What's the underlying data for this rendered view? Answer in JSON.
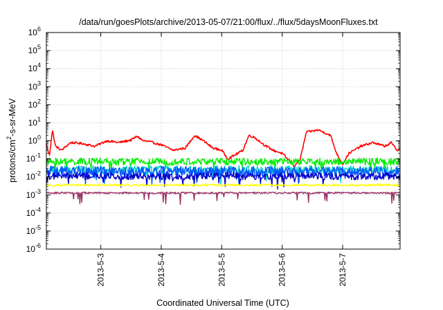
{
  "chart_data": {
    "type": "line",
    "title": "/data/run/goesPlots/archive/2013-05-07/21:00/flux/../flux/5daysMoonFluxes.txt",
    "xlabel": "Coordinated Universal Time (UTC)",
    "ylabel_parts": {
      "pre": "protons/cm",
      "sup": "2",
      "post": "-s-sr-MeV"
    },
    "y_scale": "log",
    "ylim": [
      1e-06,
      1000000.0
    ],
    "y_ticks": [
      {
        "base": "10",
        "exp": "-6",
        "v": -6
      },
      {
        "base": "10",
        "exp": "-5",
        "v": -5
      },
      {
        "base": "10",
        "exp": "-4",
        "v": -4
      },
      {
        "base": "10",
        "exp": "-3",
        "v": -3
      },
      {
        "base": "10",
        "exp": "-2",
        "v": -2
      },
      {
        "base": "10",
        "exp": "-1",
        "v": -1
      },
      {
        "base": "10",
        "exp": "0",
        "v": 0
      },
      {
        "base": "10",
        "exp": "1",
        "v": 1
      },
      {
        "base": "10",
        "exp": "2",
        "v": 2
      },
      {
        "base": "10",
        "exp": "3",
        "v": 3
      },
      {
        "base": "10",
        "exp": "4",
        "v": 4
      },
      {
        "base": "10",
        "exp": "5",
        "v": 5
      },
      {
        "base": "10",
        "exp": "6",
        "v": 6
      }
    ],
    "x_range_days": [
      2.1,
      7.95
    ],
    "x_ticks": [
      {
        "label": "2013-5-3",
        "day": 3
      },
      {
        "label": "2013-5-4",
        "day": 4
      },
      {
        "label": "2013-5-5",
        "day": 5
      },
      {
        "label": "2013-5-6",
        "day": 6
      },
      {
        "label": "2013-5-7",
        "day": 7
      }
    ],
    "grid": true,
    "series": [
      {
        "color": "#ff0000",
        "points": [
          [
            2.1,
            0.6
          ],
          [
            2.15,
            0.15
          ],
          [
            2.2,
            4
          ],
          [
            2.25,
            0.5
          ],
          [
            2.35,
            0.3
          ],
          [
            2.5,
            0.8
          ],
          [
            2.7,
            0.7
          ],
          [
            2.9,
            0.5
          ],
          [
            3.1,
            1.0
          ],
          [
            3.3,
            0.8
          ],
          [
            3.5,
            1.1
          ],
          [
            3.6,
            1.8
          ],
          [
            3.7,
            1.0
          ],
          [
            3.8,
            0.9
          ],
          [
            4.0,
            0.6
          ],
          [
            4.2,
            0.3
          ],
          [
            4.4,
            0.4
          ],
          [
            4.55,
            2.0
          ],
          [
            4.7,
            1.0
          ],
          [
            4.85,
            0.4
          ],
          [
            5.0,
            0.3
          ],
          [
            5.1,
            0.1
          ],
          [
            5.2,
            0.15
          ],
          [
            5.35,
            0.3
          ],
          [
            5.45,
            2.0
          ],
          [
            5.55,
            1.5
          ],
          [
            5.7,
            0.6
          ],
          [
            5.85,
            0.3
          ],
          [
            6.0,
            0.2
          ],
          [
            6.2,
            0.04
          ],
          [
            6.3,
            0.1
          ],
          [
            6.4,
            3.0
          ],
          [
            6.6,
            4.0
          ],
          [
            6.8,
            2.0
          ],
          [
            6.9,
            0.2
          ],
          [
            7.0,
            0.05
          ],
          [
            7.1,
            0.2
          ],
          [
            7.3,
            0.5
          ],
          [
            7.5,
            0.8
          ],
          [
            7.7,
            0.5
          ],
          [
            7.8,
            0.8
          ],
          [
            7.9,
            0.3
          ],
          [
            7.95,
            0.4
          ]
        ],
        "noise": 0.06
      },
      {
        "color": "#00ee00",
        "base": 0.07,
        "noise": 0.2,
        "dips": true
      },
      {
        "color": "#00cccc",
        "base": 0.025,
        "noise": 0.22,
        "dips": true
      },
      {
        "color": "#0055ff",
        "base": 0.02,
        "noise": 0.28,
        "dips": true
      },
      {
        "color": "#0000cc",
        "base": 0.011,
        "noise": 0.2,
        "dips": true
      },
      {
        "color": "#ffff00",
        "base": 0.0035,
        "noise": 0.06,
        "dips": false
      },
      {
        "color": "#993366",
        "base": 0.0013,
        "noise": 0.05,
        "dips": true
      }
    ]
  }
}
